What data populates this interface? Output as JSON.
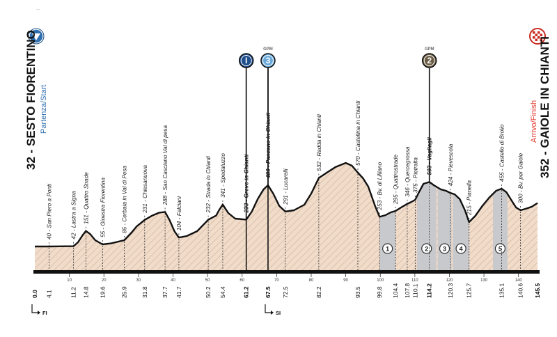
{
  "header_text": "...",
  "start": {
    "alt_name": "32 - SESTO FIORENTINO",
    "label": "Partenza/Start",
    "km": "0.0"
  },
  "finish": {
    "alt_name": "352 - GAIOLE IN CHIANTI",
    "label": "Arrivo/Finish",
    "km": "145.5"
  },
  "badges": [
    {
      "text": "I",
      "km": 61.2,
      "color": "#1f4e8c",
      "tag": ""
    },
    {
      "text": "3",
      "km": 67.5,
      "color": "#6aa9d8",
      "tag": "GPM"
    },
    {
      "text": "2",
      "km": 114.2,
      "color": "#6b5d45",
      "tag": "GPM"
    }
  ],
  "waypoints": [
    {
      "label": "40 - San Piero a Ponti",
      "km": 4.1,
      "bold": false
    },
    {
      "label": "42 - Lastra a Signa",
      "km": 11.2,
      "bold": false
    },
    {
      "label": "151 - Quattro Strade",
      "km": 14.8,
      "bold": false
    },
    {
      "label": "55 - Ginestra Fiorentina",
      "km": 19.6,
      "bold": false
    },
    {
      "label": "85 - Cerbaia in Val di Pesa",
      "km": 25.9,
      "bold": false
    },
    {
      "label": "231 - Chiesanuova",
      "km": 31.8,
      "bold": false
    },
    {
      "label": "288 - San Casciano Val di pesa",
      "km": 37.7,
      "bold": false
    },
    {
      "label": "104 - Falciani",
      "km": 41.7,
      "bold": false
    },
    {
      "label": "232 - Strada in Chianti",
      "km": 50.2,
      "bold": false
    },
    {
      "label": "341 - Spedaluzzo",
      "km": 54.4,
      "bold": false
    },
    {
      "label": "233 - Greve in Chianti",
      "km": 61.2,
      "bold": true
    },
    {
      "label": "480 - Panzano in Chianti",
      "km": 67.5,
      "bold": true
    },
    {
      "label": "291 - Lucarelli",
      "km": 72.5,
      "bold": false
    },
    {
      "label": "532 - Radda in Chianti",
      "km": 82.2,
      "bold": false
    },
    {
      "label": "570 - Castellina in Chianti",
      "km": 93.5,
      "bold": false
    },
    {
      "label": "253 - Bv. di Lilliano",
      "km": 99.8,
      "bold": false
    },
    {
      "label": "295 - Quattrostrade",
      "km": 104.4,
      "bold": false
    },
    {
      "label": "346 - Quercegrossa",
      "km": 107.8,
      "bold": false
    },
    {
      "label": "375 - Pietralta",
      "km": 110.1,
      "bold": false
    },
    {
      "label": "503 - Vagliagli",
      "km": 114.2,
      "bold": true
    },
    {
      "label": "424 - Pievescola",
      "km": 120.3,
      "bold": false
    },
    {
      "label": "215 - Pianella",
      "km": 125.7,
      "bold": false
    },
    {
      "label": "455 - Castello di Brolio",
      "km": 135.1,
      "bold": false
    },
    {
      "label": "300 - Bv. per Gaiole",
      "km": 140.6,
      "bold": false
    }
  ],
  "km_labels": [
    {
      "text": "0.0",
      "km": 0,
      "bold": true
    },
    {
      "text": "4.1",
      "km": 4.1,
      "bold": false
    },
    {
      "text": "11.2",
      "km": 11.2,
      "bold": false
    },
    {
      "text": "14.8",
      "km": 14.8,
      "bold": false
    },
    {
      "text": "19.6",
      "km": 19.6,
      "bold": false
    },
    {
      "text": "25.9",
      "km": 25.9,
      "bold": false
    },
    {
      "text": "31.8",
      "km": 31.8,
      "bold": false
    },
    {
      "text": "37.7",
      "km": 37.7,
      "bold": false
    },
    {
      "text": "41.7",
      "km": 41.7,
      "bold": false
    },
    {
      "text": "50.2",
      "km": 50.2,
      "bold": false
    },
    {
      "text": "54.4",
      "km": 54.4,
      "bold": false
    },
    {
      "text": "61.2",
      "km": 61.2,
      "bold": true
    },
    {
      "text": "67.5",
      "km": 67.5,
      "bold": true
    },
    {
      "text": "72.5",
      "km": 72.5,
      "bold": false
    },
    {
      "text": "82.2",
      "km": 82.2,
      "bold": false
    },
    {
      "text": "93.5",
      "km": 93.5,
      "bold": false
    },
    {
      "text": "99.8",
      "km": 99.8,
      "bold": false
    },
    {
      "text": "104.4",
      "km": 104.4,
      "bold": false
    },
    {
      "text": "107.8",
      "km": 107.8,
      "bold": false
    },
    {
      "text": "110.1",
      "km": 110.1,
      "bold": false
    },
    {
      "text": "114.2",
      "km": 114.2,
      "bold": true
    },
    {
      "text": "120.3",
      "km": 120.3,
      "bold": false
    },
    {
      "text": "125.7",
      "km": 125.7,
      "bold": false
    },
    {
      "text": "135.1",
      "km": 135.1,
      "bold": false
    },
    {
      "text": "140.6",
      "km": 140.6,
      "bold": false
    },
    {
      "text": "145.5",
      "km": 145.5,
      "bold": true
    }
  ],
  "scale_ticks": [
    10,
    20,
    30,
    40,
    50,
    60,
    70,
    80,
    90,
    100,
    110,
    120,
    130,
    140
  ],
  "gravel_sectors": [
    {
      "label": "1",
      "from": 99.8,
      "to": 104.4
    },
    {
      "label": "2",
      "from": 110.6,
      "to": 116.2
    },
    {
      "label": "3",
      "from": 116.6,
      "to": 120.6
    },
    {
      "label": "4",
      "from": 121.0,
      "to": 125.7
    },
    {
      "label": "5",
      "from": 132.6,
      "to": 136.8
    }
  ],
  "profile": [
    [
      0,
      40
    ],
    [
      2,
      40
    ],
    [
      4.1,
      40
    ],
    [
      7,
      41
    ],
    [
      11.2,
      42
    ],
    [
      12.5,
      70
    ],
    [
      13.8,
      120
    ],
    [
      14.8,
      151
    ],
    [
      16,
      130
    ],
    [
      17.5,
      85
    ],
    [
      19.6,
      55
    ],
    [
      22,
      62
    ],
    [
      25.9,
      85
    ],
    [
      28,
      140
    ],
    [
      29.5,
      185
    ],
    [
      31.8,
      231
    ],
    [
      34,
      262
    ],
    [
      36,
      283
    ],
    [
      37.7,
      288
    ],
    [
      39,
      230
    ],
    [
      40.4,
      150
    ],
    [
      41.7,
      104
    ],
    [
      44,
      115
    ],
    [
      47,
      150
    ],
    [
      50.2,
      232
    ],
    [
      52.5,
      262
    ],
    [
      53.3,
      300
    ],
    [
      54.4,
      341
    ],
    [
      56,
      280
    ],
    [
      58,
      240
    ],
    [
      61.2,
      233
    ],
    [
      62.8,
      290
    ],
    [
      64.5,
      380
    ],
    [
      66.2,
      450
    ],
    [
      67.5,
      480
    ],
    [
      69,
      420
    ],
    [
      70.8,
      330
    ],
    [
      72.5,
      291
    ],
    [
      75,
      300
    ],
    [
      78,
      340
    ],
    [
      80,
      420
    ],
    [
      82.2,
      532
    ],
    [
      84.5,
      570
    ],
    [
      87,
      610
    ],
    [
      90,
      640
    ],
    [
      91.8,
      620
    ],
    [
      93.5,
      570
    ],
    [
      95,
      530
    ],
    [
      96.5,
      470
    ],
    [
      98.5,
      330
    ],
    [
      99.8,
      253
    ],
    [
      101.5,
      265
    ],
    [
      103,
      285
    ],
    [
      104.4,
      295
    ],
    [
      106,
      320
    ],
    [
      107.8,
      346
    ],
    [
      109,
      360
    ],
    [
      110.1,
      375
    ],
    [
      111.2,
      430
    ],
    [
      112.5,
      490
    ],
    [
      114.2,
      503
    ],
    [
      115.5,
      480
    ],
    [
      117.5,
      450
    ],
    [
      119,
      440
    ],
    [
      120.3,
      424
    ],
    [
      121.5,
      415
    ],
    [
      123,
      380
    ],
    [
      124.5,
      300
    ],
    [
      125.7,
      215
    ],
    [
      127.5,
      260
    ],
    [
      129.5,
      330
    ],
    [
      131.5,
      390
    ],
    [
      133.5,
      440
    ],
    [
      135.1,
      455
    ],
    [
      136.5,
      430
    ],
    [
      138,
      370
    ],
    [
      139.3,
      320
    ],
    [
      140.6,
      300
    ],
    [
      142,
      310
    ],
    [
      143.8,
      325
    ],
    [
      145.5,
      352
    ]
  ],
  "directions": [
    {
      "label": "FI",
      "km": 0
    },
    {
      "label": "SI",
      "km": 67.5
    }
  ],
  "colors": {
    "fill": "#f1dcc9",
    "hatch": "#c9b19d",
    "gravel": "#c8c9cc",
    "line": "#111111",
    "start_blue": "#2f6fb0",
    "finish_red": "#e23b2e"
  }
}
